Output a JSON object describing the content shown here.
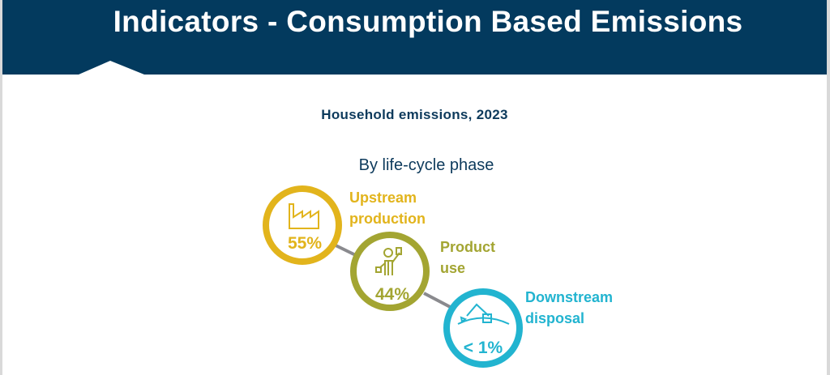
{
  "header": {
    "title": "Indicators - Consumption Based Emissions"
  },
  "subtitle": "Household emissions, 2023",
  "section_title": "By life-cycle phase",
  "phases": [
    {
      "label_line1": "Upstream",
      "label_line2": "production",
      "value": "55%",
      "icon": "factory-icon",
      "color": "#e2b41c"
    },
    {
      "label_line1": "Product",
      "label_line2": "use",
      "value": "44%",
      "icon": "person-using-product-icon",
      "color": "#a3a532"
    },
    {
      "label_line1": "Downstream",
      "label_line2": "disposal",
      "value": "< 1%",
      "icon": "excavator-icon",
      "color": "#22b4d0"
    }
  ]
}
